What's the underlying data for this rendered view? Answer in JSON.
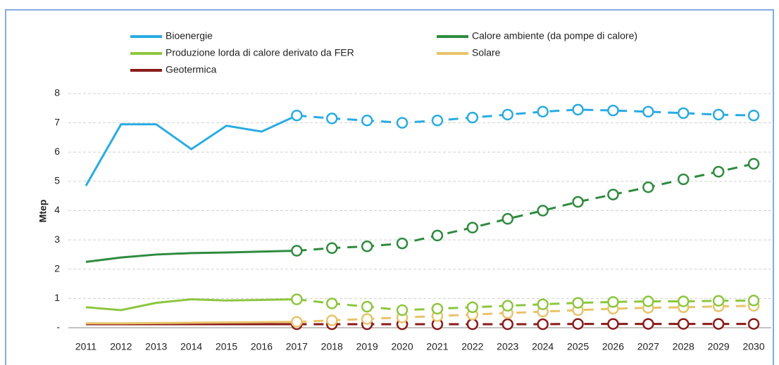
{
  "chart_data": {
    "type": "line",
    "y_label": "Mtep",
    "categories": [
      "2011",
      "2012",
      "2013",
      "2014",
      "2015",
      "2016",
      "2017",
      "2018",
      "2019",
      "2020",
      "2021",
      "2022",
      "2023",
      "2024",
      "2025",
      "2026",
      "2027",
      "2028",
      "2029",
      "2030"
    ],
    "forecast_start": "2017",
    "ylim": [
      0,
      8
    ],
    "yticks": [
      {
        "value": 0,
        "label": "-"
      },
      1,
      2,
      3,
      4,
      5,
      6,
      7,
      8
    ],
    "grid": true,
    "legend": "top",
    "series": [
      {
        "name": "Bioenergie",
        "color": "#29abe2",
        "values": [
          4.85,
          6.95,
          6.95,
          6.1,
          6.9,
          6.7,
          7.25,
          7.15,
          7.08,
          7.0,
          7.08,
          7.18,
          7.28,
          7.38,
          7.45,
          7.42,
          7.38,
          7.33,
          7.28,
          7.25
        ]
      },
      {
        "name": "Calore ambiente (da pompe di calore)",
        "color": "#2e8b3e",
        "values": [
          2.25,
          2.4,
          2.5,
          2.55,
          2.57,
          2.6,
          2.63,
          2.72,
          2.78,
          2.88,
          3.15,
          3.42,
          3.72,
          4.0,
          4.3,
          4.55,
          4.8,
          5.07,
          5.33,
          5.6
        ]
      },
      {
        "name": "Produzione lorda di calore derivato da FER",
        "color": "#8dc63f",
        "values": [
          0.7,
          0.6,
          0.85,
          0.97,
          0.93,
          0.95,
          0.97,
          0.83,
          0.72,
          0.6,
          0.65,
          0.7,
          0.75,
          0.8,
          0.85,
          0.88,
          0.9,
          0.9,
          0.92,
          0.93
        ]
      },
      {
        "name": "Solare",
        "color": "#e8c36a",
        "values": [
          0.15,
          0.15,
          0.16,
          0.17,
          0.18,
          0.19,
          0.2,
          0.25,
          0.3,
          0.35,
          0.4,
          0.45,
          0.5,
          0.55,
          0.6,
          0.65,
          0.68,
          0.7,
          0.73,
          0.75
        ]
      },
      {
        "name": "Geotermica",
        "color": "#8b1a1a",
        "values": [
          0.12,
          0.12,
          0.12,
          0.12,
          0.12,
          0.12,
          0.12,
          0.12,
          0.12,
          0.12,
          0.12,
          0.12,
          0.12,
          0.12,
          0.13,
          0.13,
          0.13,
          0.13,
          0.13,
          0.13
        ]
      }
    ]
  }
}
